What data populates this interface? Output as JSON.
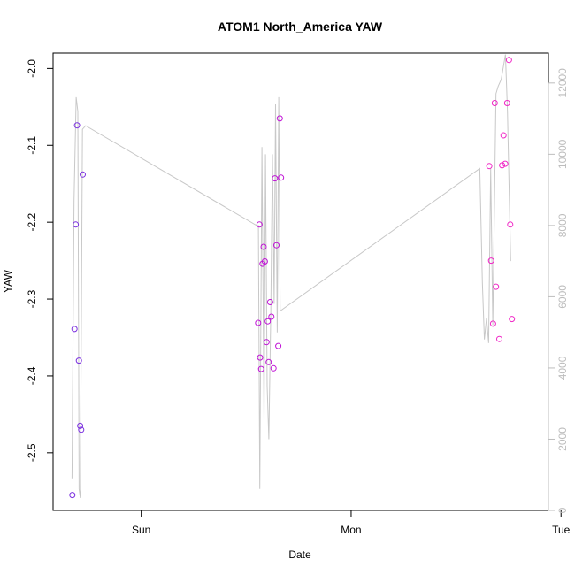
{
  "chart_data": {
    "type": "scatter",
    "title": "ATOM1 North_America YAW",
    "xlabel": "Date",
    "ylabel": "YAW",
    "x_unit": "day",
    "xlim": [
      -0.42,
      1.94
    ],
    "ylim": [
      -2.575,
      -1.98
    ],
    "y_ticks": [
      "-2.0",
      "-2.1",
      "-2.2",
      "-2.3",
      "-2.4",
      "-2.5"
    ],
    "y_tick_values": [
      -2.0,
      -2.1,
      -2.2,
      -2.3,
      -2.4,
      -2.5
    ],
    "x_ticks": [
      {
        "label": "Sun",
        "value": 0
      },
      {
        "label": "Mon",
        "value": 1
      },
      {
        "label": "Tue",
        "value": 2
      }
    ],
    "right_axis": {
      "range": [
        0,
        12840
      ],
      "ticks": [
        "0",
        "2000",
        "4000",
        "6000",
        "8000",
        "10000",
        "12000"
      ],
      "tick_values": [
        0,
        2000,
        4000,
        6000,
        8000,
        10000,
        12000
      ],
      "color": "#bdbdbd"
    },
    "grid": false,
    "series": [
      {
        "color": "#7b2fe0",
        "points": [
          [
            -0.328,
            -2.555
          ],
          [
            -0.318,
            -2.339
          ],
          [
            -0.312,
            -2.203
          ],
          [
            -0.306,
            -2.074
          ],
          [
            -0.297,
            -2.38
          ],
          [
            -0.291,
            -2.465
          ],
          [
            -0.286,
            -2.47
          ],
          [
            -0.279,
            -2.138
          ]
        ]
      },
      {
        "color": "#c013d6",
        "points": [
          [
            0.557,
            -2.331
          ],
          [
            0.563,
            -2.203
          ],
          [
            0.566,
            -2.376
          ],
          [
            0.571,
            -2.391
          ],
          [
            0.578,
            -2.254
          ],
          [
            0.583,
            -2.232
          ],
          [
            0.589,
            -2.251
          ],
          [
            0.597,
            -2.356
          ],
          [
            0.603,
            -2.329
          ],
          [
            0.607,
            -2.382
          ],
          [
            0.614,
            -2.304
          ],
          [
            0.62,
            -2.323
          ],
          [
            0.63,
            -2.39
          ],
          [
            0.637,
            -2.143
          ],
          [
            0.644,
            -2.23
          ],
          [
            0.653,
            -2.361
          ],
          [
            0.66,
            -2.065
          ],
          [
            0.666,
            -2.142
          ]
        ]
      },
      {
        "color": "#f026c6",
        "points": [
          [
            1.658,
            -2.127
          ],
          [
            1.667,
            -2.25
          ],
          [
            1.676,
            -2.332
          ],
          [
            1.684,
            -2.045
          ],
          [
            1.69,
            -2.284
          ],
          [
            1.706,
            -2.352
          ],
          [
            1.719,
            -2.126
          ],
          [
            1.726,
            -2.087
          ],
          [
            1.734,
            -2.124
          ],
          [
            1.743,
            -2.045
          ],
          [
            1.752,
            -1.989
          ],
          [
            1.758,
            -2.203
          ],
          [
            1.766,
            -2.326
          ]
        ]
      }
    ],
    "secondary_line": {
      "color": "#c8c8c8",
      "points": [
        [
          -0.33,
          900
        ],
        [
          -0.32,
          8700
        ],
        [
          -0.31,
          11600
        ],
        [
          -0.302,
          11200
        ],
        [
          -0.296,
          600
        ],
        [
          -0.29,
          350
        ],
        [
          -0.28,
          10700
        ],
        [
          -0.265,
          10800
        ],
        [
          0.55,
          8000
        ],
        [
          0.558,
          8000
        ],
        [
          0.565,
          600
        ],
        [
          0.575,
          10200
        ],
        [
          0.585,
          2500
        ],
        [
          0.592,
          10000
        ],
        [
          0.6,
          3500
        ],
        [
          0.608,
          2000
        ],
        [
          0.617,
          5500
        ],
        [
          0.625,
          10000
        ],
        [
          0.633,
          5800
        ],
        [
          0.64,
          11400
        ],
        [
          0.648,
          5000
        ],
        [
          0.655,
          11600
        ],
        [
          0.662,
          5600
        ],
        [
          1.613,
          9600
        ],
        [
          1.625,
          6400
        ],
        [
          1.635,
          4800
        ],
        [
          1.645,
          5400
        ],
        [
          1.655,
          4700
        ],
        [
          1.665,
          9600
        ],
        [
          1.675,
          5200
        ],
        [
          1.69,
          11700
        ],
        [
          1.7,
          11900
        ],
        [
          1.715,
          12100
        ],
        [
          1.735,
          12800
        ],
        [
          1.745,
          11200
        ],
        [
          1.76,
          7000
        ]
      ]
    }
  }
}
